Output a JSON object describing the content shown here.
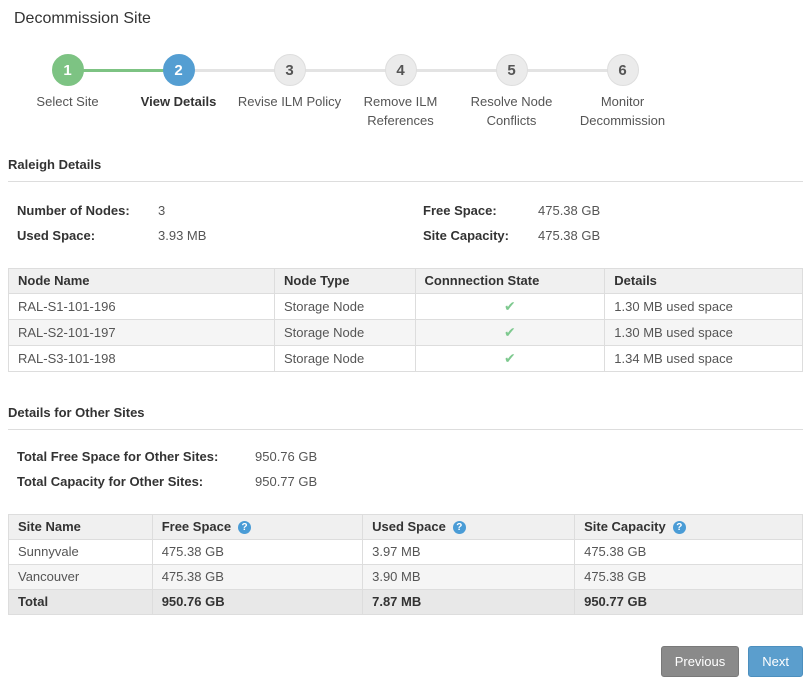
{
  "page": {
    "title": "Decommission Site"
  },
  "stepper": {
    "steps": [
      {
        "number": "1",
        "label": "Select Site",
        "state": "complete"
      },
      {
        "number": "2",
        "label": "View Details",
        "state": "current"
      },
      {
        "number": "3",
        "label": "Revise ILM Policy",
        "state": "upcoming"
      },
      {
        "number": "4",
        "label": "Remove ILM References",
        "state": "upcoming"
      },
      {
        "number": "5",
        "label": "Resolve Node Conflicts",
        "state": "upcoming"
      },
      {
        "number": "6",
        "label": "Monitor Decommission",
        "state": "upcoming"
      }
    ]
  },
  "site_details": {
    "heading": "Raleigh Details",
    "fields": [
      {
        "label": "Number of Nodes:",
        "value": "3"
      },
      {
        "label": "Free Space:",
        "value": "475.38 GB"
      },
      {
        "label": "Used Space:",
        "value": "3.93 MB"
      },
      {
        "label": "Site Capacity:",
        "value": "475.38 GB"
      }
    ]
  },
  "node_table": {
    "columns": [
      "Node Name",
      "Node Type",
      "Connnection State",
      "Details"
    ],
    "rows": [
      {
        "name": "RAL-S1-101-196",
        "type": "Storage Node",
        "connection": "connected",
        "details": "1.30 MB used space"
      },
      {
        "name": "RAL-S2-101-197",
        "type": "Storage Node",
        "connection": "connected",
        "details": "1.30 MB used space"
      },
      {
        "name": "RAL-S3-101-198",
        "type": "Storage Node",
        "connection": "connected",
        "details": "1.34 MB used space"
      }
    ]
  },
  "other_sites": {
    "heading": "Details for Other Sites",
    "fields": [
      {
        "label": "Total Free Space for Other Sites:",
        "value": "950.76 GB"
      },
      {
        "label": "Total Capacity for Other Sites:",
        "value": "950.77 GB"
      }
    ]
  },
  "site_table": {
    "columns": [
      {
        "label": "Site Name",
        "help": false
      },
      {
        "label": "Free Space",
        "help": true
      },
      {
        "label": "Used Space",
        "help": true
      },
      {
        "label": "Site Capacity",
        "help": true
      }
    ],
    "rows": [
      {
        "site": "Sunnyvale",
        "free": "475.38 GB",
        "used": "3.97 MB",
        "capacity": "475.38 GB"
      },
      {
        "site": "Vancouver",
        "free": "475.38 GB",
        "used": "3.90 MB",
        "capacity": "475.38 GB"
      }
    ],
    "total_row": {
      "site": "Total",
      "free": "950.76 GB",
      "used": "7.87 MB",
      "capacity": "950.77 GB"
    }
  },
  "buttons": {
    "previous": "Previous",
    "next": "Next"
  },
  "icons": {
    "connected_check": "✔",
    "help": "?"
  },
  "colors": {
    "step_complete_green": "#7dc383",
    "step_current_blue": "#549ed2",
    "check_green": "#7ec98f",
    "help_icon_blue": "#4a9cd6",
    "button_gray": "#8a8a8a",
    "button_blue": "#5b9ecd",
    "table_header_bg": "#f0f0f0",
    "stripe_bg": "#f5f5f5",
    "total_row_bg": "#e8e8e8"
  }
}
